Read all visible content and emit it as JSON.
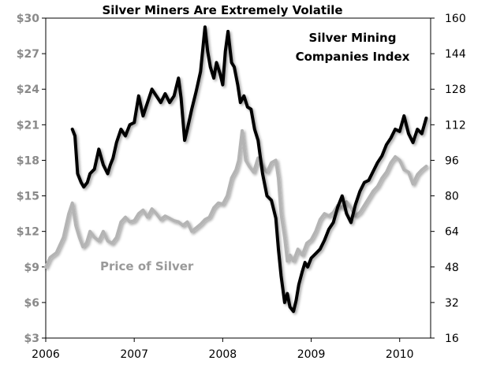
{
  "chart_data": {
    "type": "line",
    "title": "Silver Miners Are Extremely Volatile",
    "grid": false,
    "legend": "none",
    "x_axis": {
      "range": [
        2006.0,
        2010.35
      ],
      "ticks": [
        2006,
        2007,
        2008,
        2009,
        2010
      ],
      "tick_labels": [
        "2006",
        "2007",
        "2008",
        "2009",
        "2010"
      ]
    },
    "y_left": {
      "range": [
        3,
        30
      ],
      "ticks": [
        3,
        6,
        9,
        12,
        15,
        18,
        21,
        24,
        27,
        30
      ],
      "tick_labels": [
        "$3",
        "$6",
        "$9",
        "$12",
        "$15",
        "$18",
        "$21",
        "$24",
        "$27",
        "$30"
      ]
    },
    "y_right": {
      "range": [
        16,
        160
      ],
      "ticks": [
        16,
        32,
        48,
        64,
        80,
        96,
        112,
        128,
        144,
        160
      ],
      "tick_labels": [
        "16",
        "32",
        "48",
        "64",
        "80",
        "96",
        "112",
        "128",
        "144",
        "160"
      ]
    },
    "annotations": {
      "index_label_line1": "Silver Mining",
      "index_label_line2": "Companies Index",
      "silver_label": "Price of Silver"
    },
    "series": [
      {
        "axis": "left",
        "color": "#b4b4b4",
        "x": [
          2006.0,
          2006.05,
          2006.12,
          2006.2,
          2006.26,
          2006.3,
          2006.34,
          2006.38,
          2006.42,
          2006.46,
          2006.5,
          2006.55,
          2006.6,
          2006.65,
          2006.7,
          2006.75,
          2006.8,
          2006.85,
          2006.9,
          2006.95,
          2007.0,
          2007.05,
          2007.1,
          2007.15,
          2007.2,
          2007.25,
          2007.3,
          2007.35,
          2007.4,
          2007.45,
          2007.5,
          2007.55,
          2007.6,
          2007.65,
          2007.7,
          2007.75,
          2007.8,
          2007.85,
          2007.9,
          2007.95,
          2008.0,
          2008.05,
          2008.1,
          2008.15,
          2008.18,
          2008.22,
          2008.26,
          2008.3,
          2008.35,
          2008.4,
          2008.45,
          2008.5,
          2008.55,
          2008.6,
          2008.63,
          2008.66,
          2008.7,
          2008.73,
          2008.76,
          2008.8,
          2008.85,
          2008.9,
          2008.95,
          2009.0,
          2009.05,
          2009.1,
          2009.15,
          2009.2,
          2009.25,
          2009.3,
          2009.35,
          2009.4,
          2009.45,
          2009.5,
          2009.55,
          2009.6,
          2009.65,
          2009.7,
          2009.75,
          2009.8,
          2009.85,
          2009.9,
          2009.95,
          2010.0,
          2010.05,
          2010.1,
          2010.15,
          2010.2,
          2010.25,
          2010.3
        ],
        "values": [
          9.0,
          9.8,
          10.2,
          11.5,
          13.5,
          14.4,
          12.5,
          11.5,
          10.7,
          11.0,
          12.0,
          11.5,
          11.2,
          12.0,
          11.2,
          11.0,
          11.5,
          12.8,
          13.2,
          12.8,
          12.9,
          13.5,
          13.8,
          13.2,
          13.9,
          13.5,
          13.0,
          13.3,
          13.1,
          12.9,
          12.8,
          12.5,
          12.8,
          12.0,
          12.3,
          12.6,
          13.0,
          13.2,
          14.0,
          14.4,
          14.3,
          15.0,
          16.5,
          17.2,
          18.0,
          20.5,
          18.0,
          17.5,
          17.0,
          18.2,
          17.5,
          17.0,
          17.8,
          18.0,
          16.5,
          13.5,
          11.5,
          9.5,
          10.0,
          9.5,
          10.5,
          10.0,
          11.0,
          11.3,
          12.0,
          13.0,
          13.5,
          13.3,
          13.6,
          14.2,
          14.0,
          14.5,
          14.0,
          13.3,
          13.6,
          14.2,
          14.8,
          15.4,
          15.8,
          16.5,
          17.0,
          17.8,
          18.3,
          18.0,
          17.2,
          17.0,
          16.0,
          16.8,
          17.2,
          17.5
        ]
      },
      {
        "axis": "right",
        "color": "#000000",
        "x": [
          2006.3,
          2006.33,
          2006.36,
          2006.4,
          2006.43,
          2006.47,
          2006.5,
          2006.55,
          2006.6,
          2006.65,
          2006.7,
          2006.73,
          2006.76,
          2006.8,
          2006.85,
          2006.9,
          2006.95,
          2007.0,
          2007.05,
          2007.1,
          2007.15,
          2007.2,
          2007.25,
          2007.3,
          2007.35,
          2007.4,
          2007.45,
          2007.5,
          2007.53,
          2007.57,
          2007.6,
          2007.65,
          2007.7,
          2007.75,
          2007.8,
          2007.83,
          2007.86,
          2007.9,
          2007.93,
          2007.97,
          2008.0,
          2008.03,
          2008.06,
          2008.1,
          2008.13,
          2008.17,
          2008.2,
          2008.24,
          2008.28,
          2008.32,
          2008.36,
          2008.4,
          2008.45,
          2008.5,
          2008.55,
          2008.6,
          2008.63,
          2008.66,
          2008.7,
          2008.73,
          2008.76,
          2008.8,
          2008.83,
          2008.86,
          2008.9,
          2008.93,
          2008.96,
          2009.0,
          2009.05,
          2009.1,
          2009.15,
          2009.2,
          2009.25,
          2009.3,
          2009.35,
          2009.4,
          2009.45,
          2009.5,
          2009.55,
          2009.6,
          2009.65,
          2009.7,
          2009.75,
          2009.8,
          2009.85,
          2009.9,
          2009.95,
          2010.0,
          2010.05,
          2010.1,
          2010.15,
          2010.2,
          2010.25,
          2010.3
        ],
        "values": [
          110,
          107,
          90,
          86,
          84,
          86,
          90,
          92,
          101,
          94,
          90,
          94,
          97,
          104,
          110,
          107,
          112,
          113,
          125,
          116,
          122,
          128,
          125,
          122,
          126,
          122,
          125,
          133,
          124,
          105,
          110,
          119,
          127,
          136,
          156,
          145,
          138,
          133,
          140,
          135,
          130,
          145,
          154,
          140,
          138,
          130,
          122,
          125,
          120,
          119,
          110,
          105,
          90,
          80,
          78,
          70,
          56,
          44,
          32,
          36,
          30,
          28,
          33,
          40,
          46,
          50,
          48,
          52,
          54,
          56,
          60,
          65,
          68,
          75,
          80,
          72,
          68,
          76,
          82,
          86,
          87,
          91,
          95,
          98,
          103,
          106,
          110,
          109,
          116,
          108,
          104,
          110,
          108,
          115
        ]
      }
    ]
  }
}
